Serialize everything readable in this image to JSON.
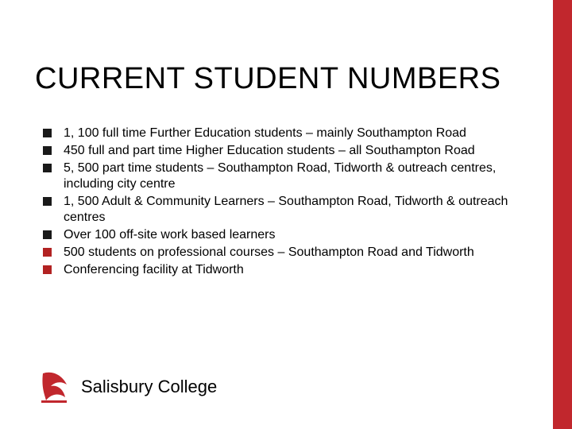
{
  "colors": {
    "accent": "#c1272d",
    "bullet_dark": "#1a1a1a",
    "bullet_red": "#b22222",
    "text": "#000000",
    "background": "#ffffff"
  },
  "title": "CURRENT STUDENT NUMBERS",
  "bullets": [
    {
      "text": "1, 100 full time Further Education students – mainly Southampton Road",
      "color_key": "bullet_dark"
    },
    {
      "text": "450 full and part time Higher Education students – all Southampton Road",
      "color_key": "bullet_dark"
    },
    {
      "text": "5, 500 part time students – Southampton Road, Tidworth & outreach centres, including city centre",
      "color_key": "bullet_dark"
    },
    {
      "text": "1, 500 Adult & Community Learners – Southampton Road, Tidworth & outreach centres",
      "color_key": "bullet_dark"
    },
    {
      "text": "Over 100 off-site work based learners",
      "color_key": "bullet_dark"
    },
    {
      "text": "500 students on professional courses – Southampton Road and Tidworth",
      "color_key": "bullet_red"
    },
    {
      "text": "Conferencing facility at Tidworth",
      "color_key": "bullet_red"
    }
  ],
  "footer": {
    "label": "Salisbury College",
    "logo_color": "#c1272d"
  }
}
